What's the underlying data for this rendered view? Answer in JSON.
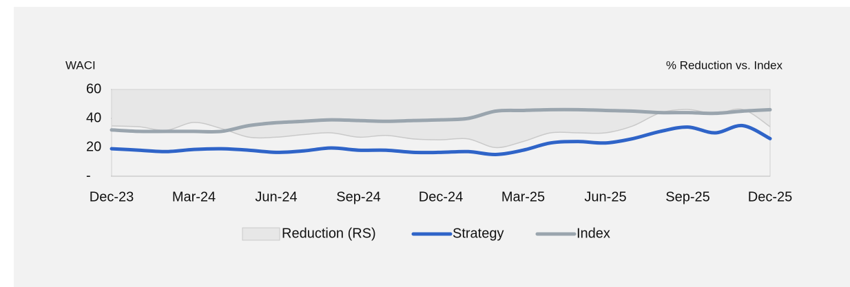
{
  "chart_data": {
    "type": "line",
    "y_label": "WACI",
    "y2_label": "% Reduction vs. Index",
    "categories": [
      "Dec-23",
      null,
      null,
      "Mar-24",
      null,
      null,
      "Jun-24",
      null,
      null,
      "Sep-24",
      null,
      null,
      "Dec-24",
      null,
      null,
      "Mar-25",
      null,
      null,
      "Jun-25",
      null,
      null,
      "Sep-25",
      null,
      null,
      "Dec-25"
    ],
    "series": [
      {
        "name": "Reduction (RS)",
        "type": "area",
        "axis": "y2",
        "color": "#e7e7e7",
        "values": [
          42,
          43,
          47,
          38,
          45,
          55,
          55,
          52,
          50,
          55,
          53,
          57,
          58,
          57,
          67,
          60,
          50,
          50,
          50,
          42,
          27,
          23,
          28,
          23,
          43
        ]
      },
      {
        "name": "Strategy",
        "color": "#2f64c8",
        "values": [
          19,
          18,
          17,
          18.5,
          19,
          18,
          16.5,
          17.5,
          19.5,
          18,
          18,
          16.5,
          16.5,
          17,
          15,
          18,
          23,
          24,
          23,
          26,
          31,
          34,
          30,
          35,
          26
        ]
      },
      {
        "name": "Index",
        "color": "#9aa5ae",
        "values": [
          32,
          31,
          31,
          31,
          31,
          35,
          37,
          38,
          39,
          38.5,
          38,
          38.5,
          39,
          40,
          45,
          45.5,
          46,
          46,
          45.5,
          45,
          44,
          44,
          43.5,
          45,
          46
        ]
      }
    ],
    "ylim": [
      0,
      60
    ],
    "yticks": [
      {
        "value": 0,
        "label": "-"
      },
      20,
      40,
      60
    ],
    "y2lim": [
      100,
      0
    ],
    "grid": false
  }
}
